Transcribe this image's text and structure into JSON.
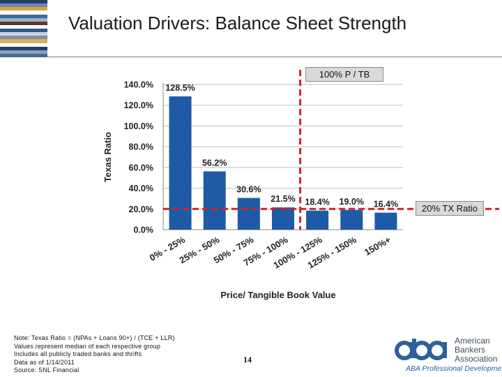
{
  "slide": {
    "title": "Valuation Drivers: Balance Sheet Strength",
    "page_number": "14",
    "stripe_colors": [
      "#1f3f6a",
      "#6f88aa",
      "#d3a43a",
      "#ffffff",
      "#3f6a9c",
      "#9fb2c9",
      "#5b3a2a",
      "#ffffff",
      "#2a5a8a",
      "#c9d3df",
      "#7e8fa6",
      "#d8b35a",
      "#ffffff",
      "#1f3f6a",
      "#8aa0bd",
      "#466b93"
    ]
  },
  "notes": [
    "Note: Texas Ratio = (NPAs + Loans 90+) / (TCE + LLR)",
    "Values represent median of each respective group",
    "Includes all publicly traded banks and thrifts",
    "Data as of 1/14/2011",
    "Source: SNL Financial"
  ],
  "logo": {
    "lines": [
      "American",
      "Bankers",
      "Association"
    ],
    "subtitle": "ABA Professional Development",
    "mark_color": "#2f5f9e"
  },
  "chart_data": {
    "type": "bar",
    "categories": [
      "0% - 25%",
      "25% - 50%",
      "50% - 75%",
      "75% - 100%",
      "100% - 125%",
      "125% - 150%",
      "150%+"
    ],
    "values": [
      128.5,
      56.2,
      30.6,
      21.5,
      18.4,
      19.0,
      16.4
    ],
    "value_labels": [
      "128.5%",
      "56.2%",
      "30.6%",
      "21.5%",
      "18.4%",
      "19.0%",
      "16.4%"
    ],
    "y_ticks": [
      0,
      20,
      40,
      60,
      80,
      100,
      120,
      140
    ],
    "y_tick_labels": [
      "0.0%",
      "20.0%",
      "40.0%",
      "60.0%",
      "80.0%",
      "100.0%",
      "120.0%",
      "140.0%"
    ],
    "ylim": [
      0,
      140
    ],
    "xlabel": "Price/ Tangible Book Value",
    "ylabel": "Texas Ratio",
    "bar_color": "#1f5aa6",
    "grid": true,
    "grid_color": "#bfbfbf",
    "reference_lines": [
      {
        "orientation": "vertical",
        "after_category_index": 3,
        "label": "100% P / TB",
        "color": "#d0232a"
      },
      {
        "orientation": "horizontal",
        "y": 20,
        "label": "20% TX Ratio",
        "color": "#d0232a"
      }
    ]
  }
}
